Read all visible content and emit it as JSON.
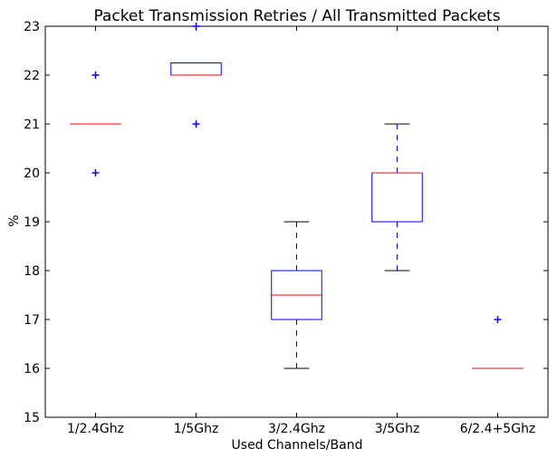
{
  "chart_data": {
    "type": "box",
    "title": "Packet Transmission Retries / All Transmitted Packets",
    "xlabel": "Used Channels/Band",
    "ylabel": "%",
    "ylim": [
      15,
      23
    ],
    "yticks": [
      15,
      16,
      17,
      18,
      19,
      20,
      21,
      22,
      23
    ],
    "grid": false,
    "colors": {
      "box": "#0000ff",
      "median": "#ff0000",
      "whisker": "#0000ff",
      "cap": "#000000",
      "flier": "#0000ff"
    },
    "categories": [
      "1/2.4Ghz",
      "1/5Ghz",
      "3/2.4Ghz",
      "3/5Ghz",
      "6/2.4+5Ghz"
    ],
    "boxes": [
      {
        "category": "1/2.4Ghz",
        "whisker_low": 21,
        "q1": 21,
        "median": 21,
        "q3": 21,
        "whisker_high": 21,
        "outliers": [
          20,
          22
        ]
      },
      {
        "category": "1/5Ghz",
        "whisker_low": 22,
        "q1": 22,
        "median": 22,
        "q3": 22.25,
        "whisker_high": 22.25,
        "outliers": [
          21,
          23
        ]
      },
      {
        "category": "3/2.4Ghz",
        "whisker_low": 16,
        "q1": 17,
        "median": 17.5,
        "q3": 18,
        "whisker_high": 19,
        "outliers": []
      },
      {
        "category": "3/5Ghz",
        "whisker_low": 18,
        "q1": 19,
        "median": 20,
        "q3": 20,
        "whisker_high": 21,
        "outliers": []
      },
      {
        "category": "6/2.4+5Ghz",
        "whisker_low": 16,
        "q1": 16,
        "median": 16,
        "q3": 16,
        "whisker_high": 16,
        "outliers": [
          17
        ]
      }
    ]
  }
}
